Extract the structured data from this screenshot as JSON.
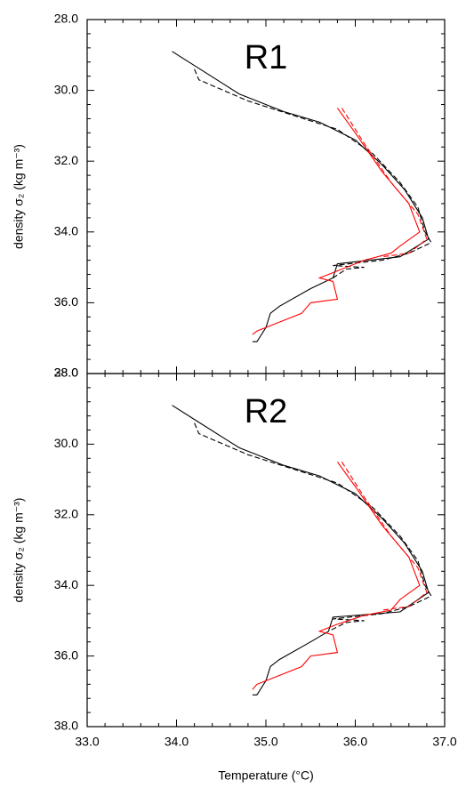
{
  "chart_data": [
    {
      "type": "line",
      "annotation": "R1",
      "annotation_color": "#ff0000",
      "ylabel": "density σ₂ (kg m⁻³)",
      "xlim": [
        33,
        37
      ],
      "xticks": [
        33,
        34,
        35,
        36,
        37
      ],
      "ylim": [
        38,
        28
      ],
      "yticks": [
        {
          "value": 28,
          "label": "28.0"
        },
        {
          "value": 30,
          "label": "30.0"
        },
        {
          "value": 32,
          "label": "32.0"
        },
        {
          "value": 34,
          "label": "34.0"
        },
        {
          "value": 36,
          "label": "36.0"
        },
        {
          "value": 38,
          "label": "38.0"
        }
      ],
      "series": [
        {
          "color": "#000000",
          "dashed": false,
          "x": [
            33.95,
            34.2,
            34.7,
            35.2,
            35.6,
            36.0,
            36.3,
            36.55,
            36.75,
            36.82,
            36.5,
            35.8,
            35.75,
            35.5,
            35.15,
            35.05,
            35.0,
            34.9,
            34.85
          ],
          "values": [
            28.9,
            29.3,
            30.1,
            30.6,
            30.9,
            31.4,
            32.1,
            32.8,
            33.6,
            34.2,
            34.7,
            34.9,
            35.3,
            35.6,
            36.1,
            36.3,
            36.7,
            37.1,
            37.1
          ]
        },
        {
          "color": "#000000",
          "dashed": true,
          "x": [
            34.2,
            34.25,
            34.8,
            35.3,
            35.8,
            36.2,
            36.5,
            36.7,
            36.78,
            36.85,
            36.6,
            36.3,
            35.75,
            36.1,
            35.9,
            35.75
          ],
          "values": [
            29.4,
            29.7,
            30.3,
            30.7,
            31.1,
            31.8,
            32.6,
            33.3,
            34.0,
            34.3,
            34.6,
            34.8,
            34.95,
            35.0,
            35.05,
            35.3
          ]
        },
        {
          "color": "#ff0000",
          "dashed": false,
          "x": [
            35.8,
            36.0,
            36.3,
            36.6,
            36.72,
            36.5,
            36.4,
            36.1,
            35.8,
            35.6,
            35.75,
            35.8,
            35.5,
            35.4,
            35.2,
            34.9,
            34.85
          ],
          "values": [
            30.5,
            31.2,
            32.3,
            33.2,
            34.0,
            34.4,
            34.6,
            34.8,
            35.1,
            35.3,
            35.4,
            35.9,
            36.0,
            36.3,
            36.5,
            36.8,
            36.9
          ]
        },
        {
          "color": "#ff0000",
          "dashed": true,
          "x": [
            35.85,
            36.1,
            36.4,
            36.7,
            36.8,
            36.6,
            36.3
          ],
          "values": [
            30.5,
            31.5,
            32.6,
            33.5,
            34.2,
            34.6,
            34.7
          ]
        }
      ]
    },
    {
      "type": "line",
      "annotation": "R2",
      "annotation_color": "#ff0000",
      "ylabel": "density σ₂ (kg m⁻³)",
      "xlabel": "Temperature (°C)",
      "xlim": [
        33,
        37
      ],
      "xticks": [
        {
          "value": 33,
          "label": "33.0"
        },
        {
          "value": 34,
          "label": "34.0"
        },
        {
          "value": 35,
          "label": "35.0"
        },
        {
          "value": 36,
          "label": "36.0"
        },
        {
          "value": 37,
          "label": "37.0"
        }
      ],
      "ylim": [
        38,
        28
      ],
      "yticks": [
        {
          "value": 28,
          "label": "28.0"
        },
        {
          "value": 30,
          "label": "30.0"
        },
        {
          "value": 32,
          "label": "32.0"
        },
        {
          "value": 34,
          "label": "34.0"
        },
        {
          "value": 36,
          "label": "36.0"
        },
        {
          "value": 38,
          "label": "38.0"
        }
      ],
      "series": [
        {
          "color": "#000000",
          "dashed": false,
          "x": [
            33.95,
            34.2,
            34.7,
            35.2,
            35.6,
            36.0,
            36.3,
            36.55,
            36.75,
            36.82,
            36.5,
            35.75,
            35.7,
            35.5,
            35.15,
            35.05,
            35.0,
            34.9,
            34.85
          ],
          "values": [
            28.9,
            29.3,
            30.1,
            30.6,
            30.9,
            31.4,
            32.1,
            32.8,
            33.6,
            34.2,
            34.75,
            34.9,
            35.3,
            35.6,
            36.1,
            36.3,
            36.7,
            37.1,
            37.1
          ]
        },
        {
          "color": "#000000",
          "dashed": true,
          "x": [
            34.2,
            34.25,
            34.8,
            35.3,
            35.8,
            36.2,
            36.5,
            36.7,
            36.78,
            36.85,
            36.6,
            36.3,
            35.75,
            36.1,
            35.9,
            35.7
          ],
          "values": [
            29.4,
            29.7,
            30.3,
            30.7,
            31.1,
            31.8,
            32.6,
            33.3,
            34.0,
            34.3,
            34.6,
            34.8,
            34.95,
            35.0,
            35.05,
            35.3
          ]
        },
        {
          "color": "#ff0000",
          "dashed": false,
          "x": [
            35.8,
            36.0,
            36.3,
            36.6,
            36.72,
            36.5,
            36.4,
            36.1,
            35.8,
            35.6,
            35.75,
            35.8,
            35.5,
            35.4,
            35.2,
            34.9,
            34.85
          ],
          "values": [
            30.5,
            31.2,
            32.3,
            33.2,
            34.0,
            34.4,
            34.7,
            34.85,
            35.1,
            35.3,
            35.4,
            35.9,
            36.0,
            36.3,
            36.5,
            36.8,
            36.95
          ]
        },
        {
          "color": "#ff0000",
          "dashed": true,
          "x": [
            35.85,
            36.1,
            36.4,
            36.7,
            36.8,
            36.6,
            36.3
          ],
          "values": [
            30.5,
            31.5,
            32.6,
            33.5,
            34.2,
            34.6,
            34.7
          ]
        }
      ]
    }
  ]
}
